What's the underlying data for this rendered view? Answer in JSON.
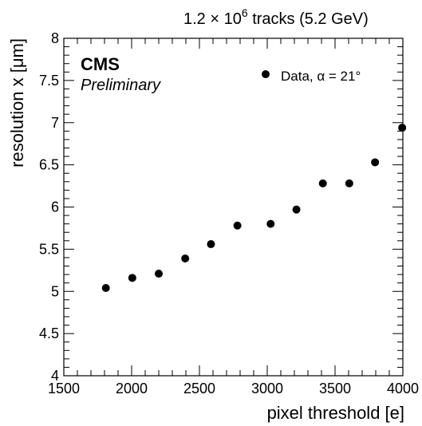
{
  "header": {
    "stats_prefix": "1.2 × 10",
    "stats_exponent": "6",
    "stats_suffix": " tracks (5.2 GeV)"
  },
  "experiment": {
    "name": "CMS",
    "status": "Preliminary"
  },
  "chart_data": {
    "type": "scatter",
    "xlabel": "pixel threshold [e]",
    "ylabel": "resolution x [μm]",
    "xlim": [
      1500,
      4000
    ],
    "ylim": [
      4,
      8
    ],
    "x_ticks": [
      1500,
      2000,
      2500,
      3000,
      3500,
      4000
    ],
    "x_tick_labels": [
      "1500",
      "2000",
      "2500",
      "3000",
      "3500",
      "4000"
    ],
    "y_ticks": [
      4,
      4.5,
      5,
      5.5,
      6,
      6.5,
      7,
      7.5,
      8
    ],
    "y_tick_labels": [
      "4",
      "4.5",
      "5",
      "5.5",
      "6",
      "6.5",
      "7",
      "7.5",
      "8"
    ],
    "grid": false,
    "legend_position": "top-right",
    "marker_color": "#000000",
    "series": [
      {
        "name": "Data, α = 21°",
        "x": [
          1810,
          2005,
          2200,
          2395,
          2585,
          2780,
          3025,
          3215,
          3410,
          3605,
          3795,
          3995
        ],
        "y": [
          5.04,
          5.16,
          5.21,
          5.39,
          5.56,
          5.78,
          5.8,
          5.97,
          6.28,
          6.28,
          6.53,
          6.94
        ]
      }
    ]
  }
}
